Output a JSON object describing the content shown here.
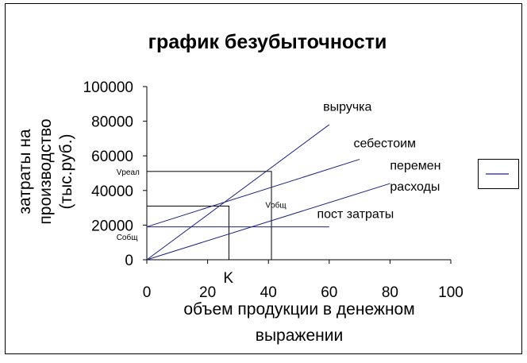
{
  "chart_data": {
    "type": "line",
    "title": "график безубыточности",
    "xlabel_lines": [
      "объем продукции в денежном",
      "выражении"
    ],
    "ylabel_lines": [
      "затраты на",
      "производство",
      "(тыс.руб.)"
    ],
    "xlim": [
      0,
      100
    ],
    "ylim": [
      0,
      100000
    ],
    "x_ticks": [
      0,
      20,
      40,
      60,
      80,
      100
    ],
    "y_ticks": [
      0,
      20000,
      40000,
      60000,
      80000,
      100000
    ],
    "x_tick_labels": [
      "0",
      "20",
      "40",
      "60",
      "80",
      "100"
    ],
    "y_tick_labels": [
      "0",
      "20000",
      "40000",
      "60000",
      "80000",
      "100000"
    ],
    "grid": false,
    "series": [
      {
        "name": "выручка",
        "points": [
          [
            0,
            0
          ],
          [
            60,
            78000
          ]
        ],
        "color": "#1a237e"
      },
      {
        "name": "себестоим",
        "points": [
          [
            0,
            19000
          ],
          [
            70,
            58000
          ]
        ],
        "color": "#1a237e"
      },
      {
        "name": "перемен расходы",
        "points": [
          [
            0,
            0
          ],
          [
            80,
            44000
          ]
        ],
        "color": "#1a237e"
      },
      {
        "name": "пост затраты",
        "points": [
          [
            0,
            19000
          ],
          [
            60,
            19000
          ]
        ],
        "color": "#1a237e"
      }
    ],
    "boxes": [
      {
        "x0": 0,
        "x1": 27,
        "y0": 0,
        "y1": 31000
      },
      {
        "x0": 0,
        "x1": 41,
        "y0": 0,
        "y1": 51000
      }
    ],
    "annotations": [
      {
        "text": "выручка",
        "x": 58,
        "y": 86000,
        "size": "ann"
      },
      {
        "text": "себестоим",
        "x": 68,
        "y": 65000,
        "size": "ann"
      },
      {
        "text": "перемен",
        "x": 80,
        "y": 52000,
        "size": "ann"
      },
      {
        "text": "расходы",
        "x": 80,
        "y": 40000,
        "size": "ann"
      },
      {
        "text": "пост затраты",
        "x": 56,
        "y": 24000,
        "size": "ann"
      },
      {
        "text": "Vреал",
        "x": -10,
        "y": 49000,
        "size": "ann-small"
      },
      {
        "text": "Vобщ",
        "x": 39,
        "y": 30000,
        "size": "ann-small"
      },
      {
        "text": "Собщ",
        "x": -10,
        "y": 11500,
        "size": "ann-small"
      }
    ],
    "point_label": {
      "text": "K",
      "x": 27
    },
    "legend": {
      "position": "right",
      "color": "#1a237e"
    }
  }
}
